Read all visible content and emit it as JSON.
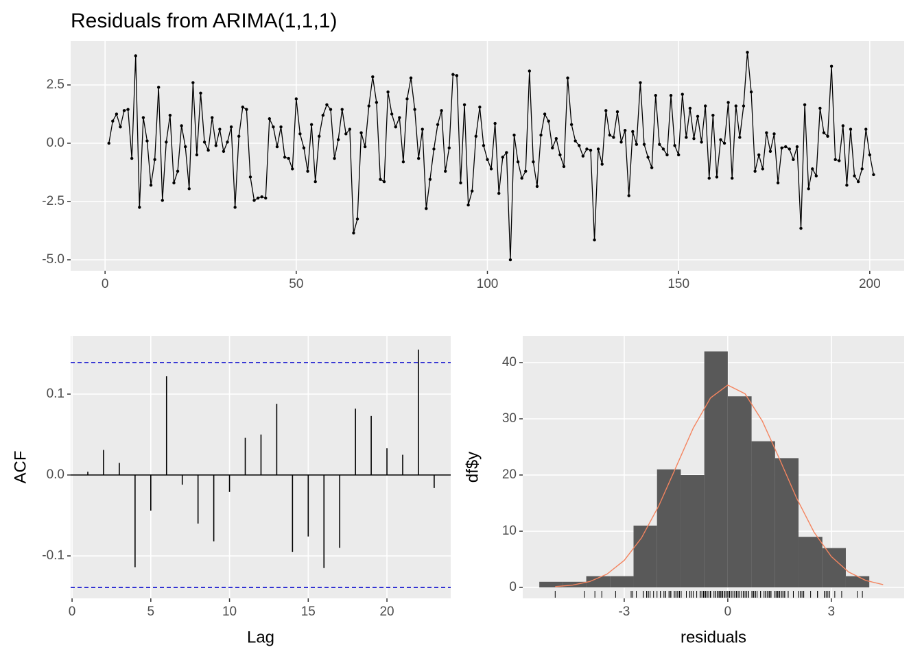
{
  "chart_data": [
    {
      "type": "line",
      "title": "Residuals from ARIMA(1,1,1)",
      "x": [
        1,
        2,
        3,
        4,
        5,
        6,
        7,
        8,
        9,
        10,
        11,
        12,
        13,
        14,
        15,
        16,
        17,
        18,
        19,
        20,
        21,
        22,
        23,
        24,
        25,
        26,
        27,
        28,
        29,
        30,
        31,
        32,
        33,
        34,
        35,
        36,
        37,
        38,
        39,
        40,
        41,
        42,
        43,
        44,
        45,
        46,
        47,
        48,
        49,
        50,
        51,
        52,
        53,
        54,
        55,
        56,
        57,
        58,
        59,
        60,
        61,
        62,
        63,
        64,
        65,
        66,
        67,
        68,
        69,
        70,
        71,
        72,
        73,
        74,
        75,
        76,
        77,
        78,
        79,
        80,
        81,
        82,
        83,
        84,
        85,
        86,
        87,
        88,
        89,
        90,
        91,
        92,
        93,
        94,
        95,
        96,
        97,
        98,
        99,
        100,
        101,
        102,
        103,
        104,
        105,
        106,
        107,
        108,
        109,
        110,
        111,
        112,
        113,
        114,
        115,
        116,
        117,
        118,
        119,
        120,
        121,
        122,
        123,
        124,
        125,
        126,
        127,
        128,
        129,
        130,
        131,
        132,
        133,
        134,
        135,
        136,
        137,
        138,
        139,
        140,
        141,
        142,
        143,
        144,
        145,
        146,
        147,
        148,
        149,
        150,
        151,
        152,
        153,
        154,
        155,
        156,
        157,
        158,
        159,
        160,
        161,
        162,
        163,
        164,
        165,
        166,
        167,
        168,
        169,
        170,
        171,
        172,
        173,
        174,
        175,
        176,
        177,
        178,
        179,
        180,
        181,
        182,
        183,
        184,
        185,
        186,
        187,
        188,
        189,
        190,
        191,
        192,
        193,
        194,
        195,
        196,
        197,
        198,
        199,
        200,
        201
      ],
      "values": [
        0.0,
        0.95,
        1.25,
        0.7,
        1.4,
        1.45,
        -0.65,
        3.75,
        -2.75,
        1.1,
        0.1,
        -1.8,
        -0.7,
        2.4,
        -2.45,
        0.05,
        1.2,
        -1.7,
        -1.2,
        0.75,
        -0.15,
        -1.95,
        2.6,
        -0.5,
        2.15,
        0.05,
        -0.3,
        1.1,
        -0.1,
        0.6,
        -0.35,
        0.05,
        0.7,
        -2.75,
        0.3,
        1.55,
        1.45,
        -1.45,
        -2.45,
        -2.35,
        -2.3,
        -2.35,
        1.05,
        0.7,
        -0.15,
        0.7,
        -0.6,
        -0.65,
        -1.1,
        1.9,
        0.4,
        -0.2,
        -1.2,
        0.8,
        -1.65,
        0.3,
        1.2,
        1.65,
        1.45,
        -0.65,
        0.15,
        1.45,
        0.4,
        0.6,
        -3.85,
        -3.25,
        0.45,
        -0.15,
        1.6,
        2.85,
        1.75,
        -1.55,
        -1.65,
        2.2,
        1.25,
        0.7,
        1.1,
        -0.8,
        1.9,
        2.8,
        1.45,
        -0.65,
        0.6,
        -2.8,
        -1.55,
        -0.25,
        0.8,
        1.4,
        -1.2,
        -0.2,
        2.95,
        2.9,
        -1.7,
        1.65,
        -2.65,
        -2.05,
        0.3,
        1.55,
        -0.1,
        -0.7,
        -1.1,
        0.85,
        -2.15,
        -0.6,
        -0.4,
        -5.0,
        0.35,
        -0.8,
        -1.5,
        -1.2,
        3.1,
        -0.8,
        -1.85,
        0.35,
        1.25,
        0.95,
        -0.2,
        0.2,
        -0.5,
        -1.0,
        2.8,
        0.8,
        0.1,
        -0.1,
        -0.55,
        -0.25,
        -0.3,
        -4.15,
        -0.25,
        -0.9,
        1.4,
        0.35,
        0.25,
        1.35,
        0.05,
        0.55,
        -2.25,
        0.5,
        -0.05,
        2.6,
        -0.05,
        -0.6,
        -1.05,
        2.05,
        -0.05,
        -0.25,
        -0.5,
        2.05,
        -0.1,
        -0.5,
        2.1,
        0.25,
        1.5,
        0.2,
        1.15,
        0.05,
        1.6,
        -1.5,
        1.2,
        -1.45,
        0.15,
        0.0,
        1.75,
        -1.5,
        1.6,
        0.25,
        1.6,
        3.9,
        2.2,
        -1.2,
        -0.5,
        -1.1,
        0.45,
        -0.35,
        0.4,
        -1.7,
        -0.2,
        -0.15,
        -0.25,
        -0.7,
        -0.15,
        -3.65,
        1.65,
        -1.95,
        -1.1,
        -1.4,
        1.5,
        0.45,
        0.3,
        3.3,
        -0.7,
        -0.75,
        0.75,
        -1.8,
        0.6,
        -1.4,
        -1.65,
        -1.1,
        0.6,
        -0.5,
        -1.35
      ],
      "color": "#000000",
      "markers": true,
      "xlim": [
        -9,
        209
      ],
      "ylim": [
        -5.47,
        4.38
      ],
      "xticks": [
        0,
        50,
        100,
        150,
        200
      ],
      "yticks": [
        {
          "value": -5,
          "label": "-5.0"
        },
        -2.5,
        {
          "value": 0,
          "label": "0.0"
        },
        2.5
      ],
      "grid": true
    },
    {
      "type": "stem",
      "x_label": "Lag",
      "y_label": "ACF",
      "x": [
        1,
        2,
        3,
        4,
        5,
        6,
        7,
        8,
        9,
        10,
        11,
        12,
        13,
        14,
        15,
        16,
        17,
        18,
        19,
        20,
        21,
        22,
        23
      ],
      "values": [
        0.004,
        0.031,
        0.015,
        -0.114,
        -0.044,
        0.122,
        -0.012,
        -0.06,
        -0.082,
        -0.021,
        0.046,
        0.05,
        0.088,
        -0.095,
        -0.076,
        -0.115,
        -0.09,
        0.082,
        0.073,
        0.033,
        0.025,
        0.155,
        -0.016
      ],
      "color": "#000000",
      "hlines": [
        0.139,
        -0.139
      ],
      "hline_color": "#0000cc",
      "xlim": [
        -0.09,
        24.05
      ],
      "ylim": [
        -0.1525,
        0.172
      ],
      "xticks": [
        0,
        5,
        10,
        15,
        20
      ],
      "yticks": [
        -0.1,
        {
          "value": 0,
          "label": "0.0"
        },
        0.1
      ],
      "grid": true
    },
    {
      "type": "histogram",
      "x_label": "residuals",
      "y_label": "df$y",
      "bins": [
        -5.46,
        -4.78,
        -4.1,
        -3.41,
        -2.73,
        -2.05,
        -1.36,
        -0.68,
        0.0,
        0.69,
        1.37,
        2.05,
        2.74,
        3.42,
        4.1
      ],
      "values": [
        1,
        1,
        2,
        2,
        11,
        21,
        20,
        42,
        34,
        26,
        23,
        9,
        7,
        2
      ],
      "color": "#595959",
      "curve": {
        "x": [
          -5,
          -4.5,
          -4,
          -3.5,
          -3,
          -2.5,
          -2,
          -1.5,
          -1,
          -0.5,
          0,
          0.5,
          1,
          1.5,
          2,
          2.5,
          3,
          3.5,
          4,
          4.5
        ],
        "values": [
          0.14,
          0.41,
          1.04,
          2.36,
          4.81,
          8.81,
          14.5,
          21.4,
          28.36,
          33.72,
          36.0,
          34.46,
          29.61,
          22.84,
          15.81,
          9.82,
          5.48,
          2.74,
          1.23,
          0.5
        ],
        "color": "#f4845f"
      },
      "rug": true,
      "xlim": [
        -5.94,
        5.11
      ],
      "ylim": [
        -1.95,
        44.76
      ],
      "xticks": [
        -3,
        0,
        3
      ],
      "yticks": [
        0,
        10,
        20,
        30,
        40
      ],
      "grid": true
    }
  ]
}
